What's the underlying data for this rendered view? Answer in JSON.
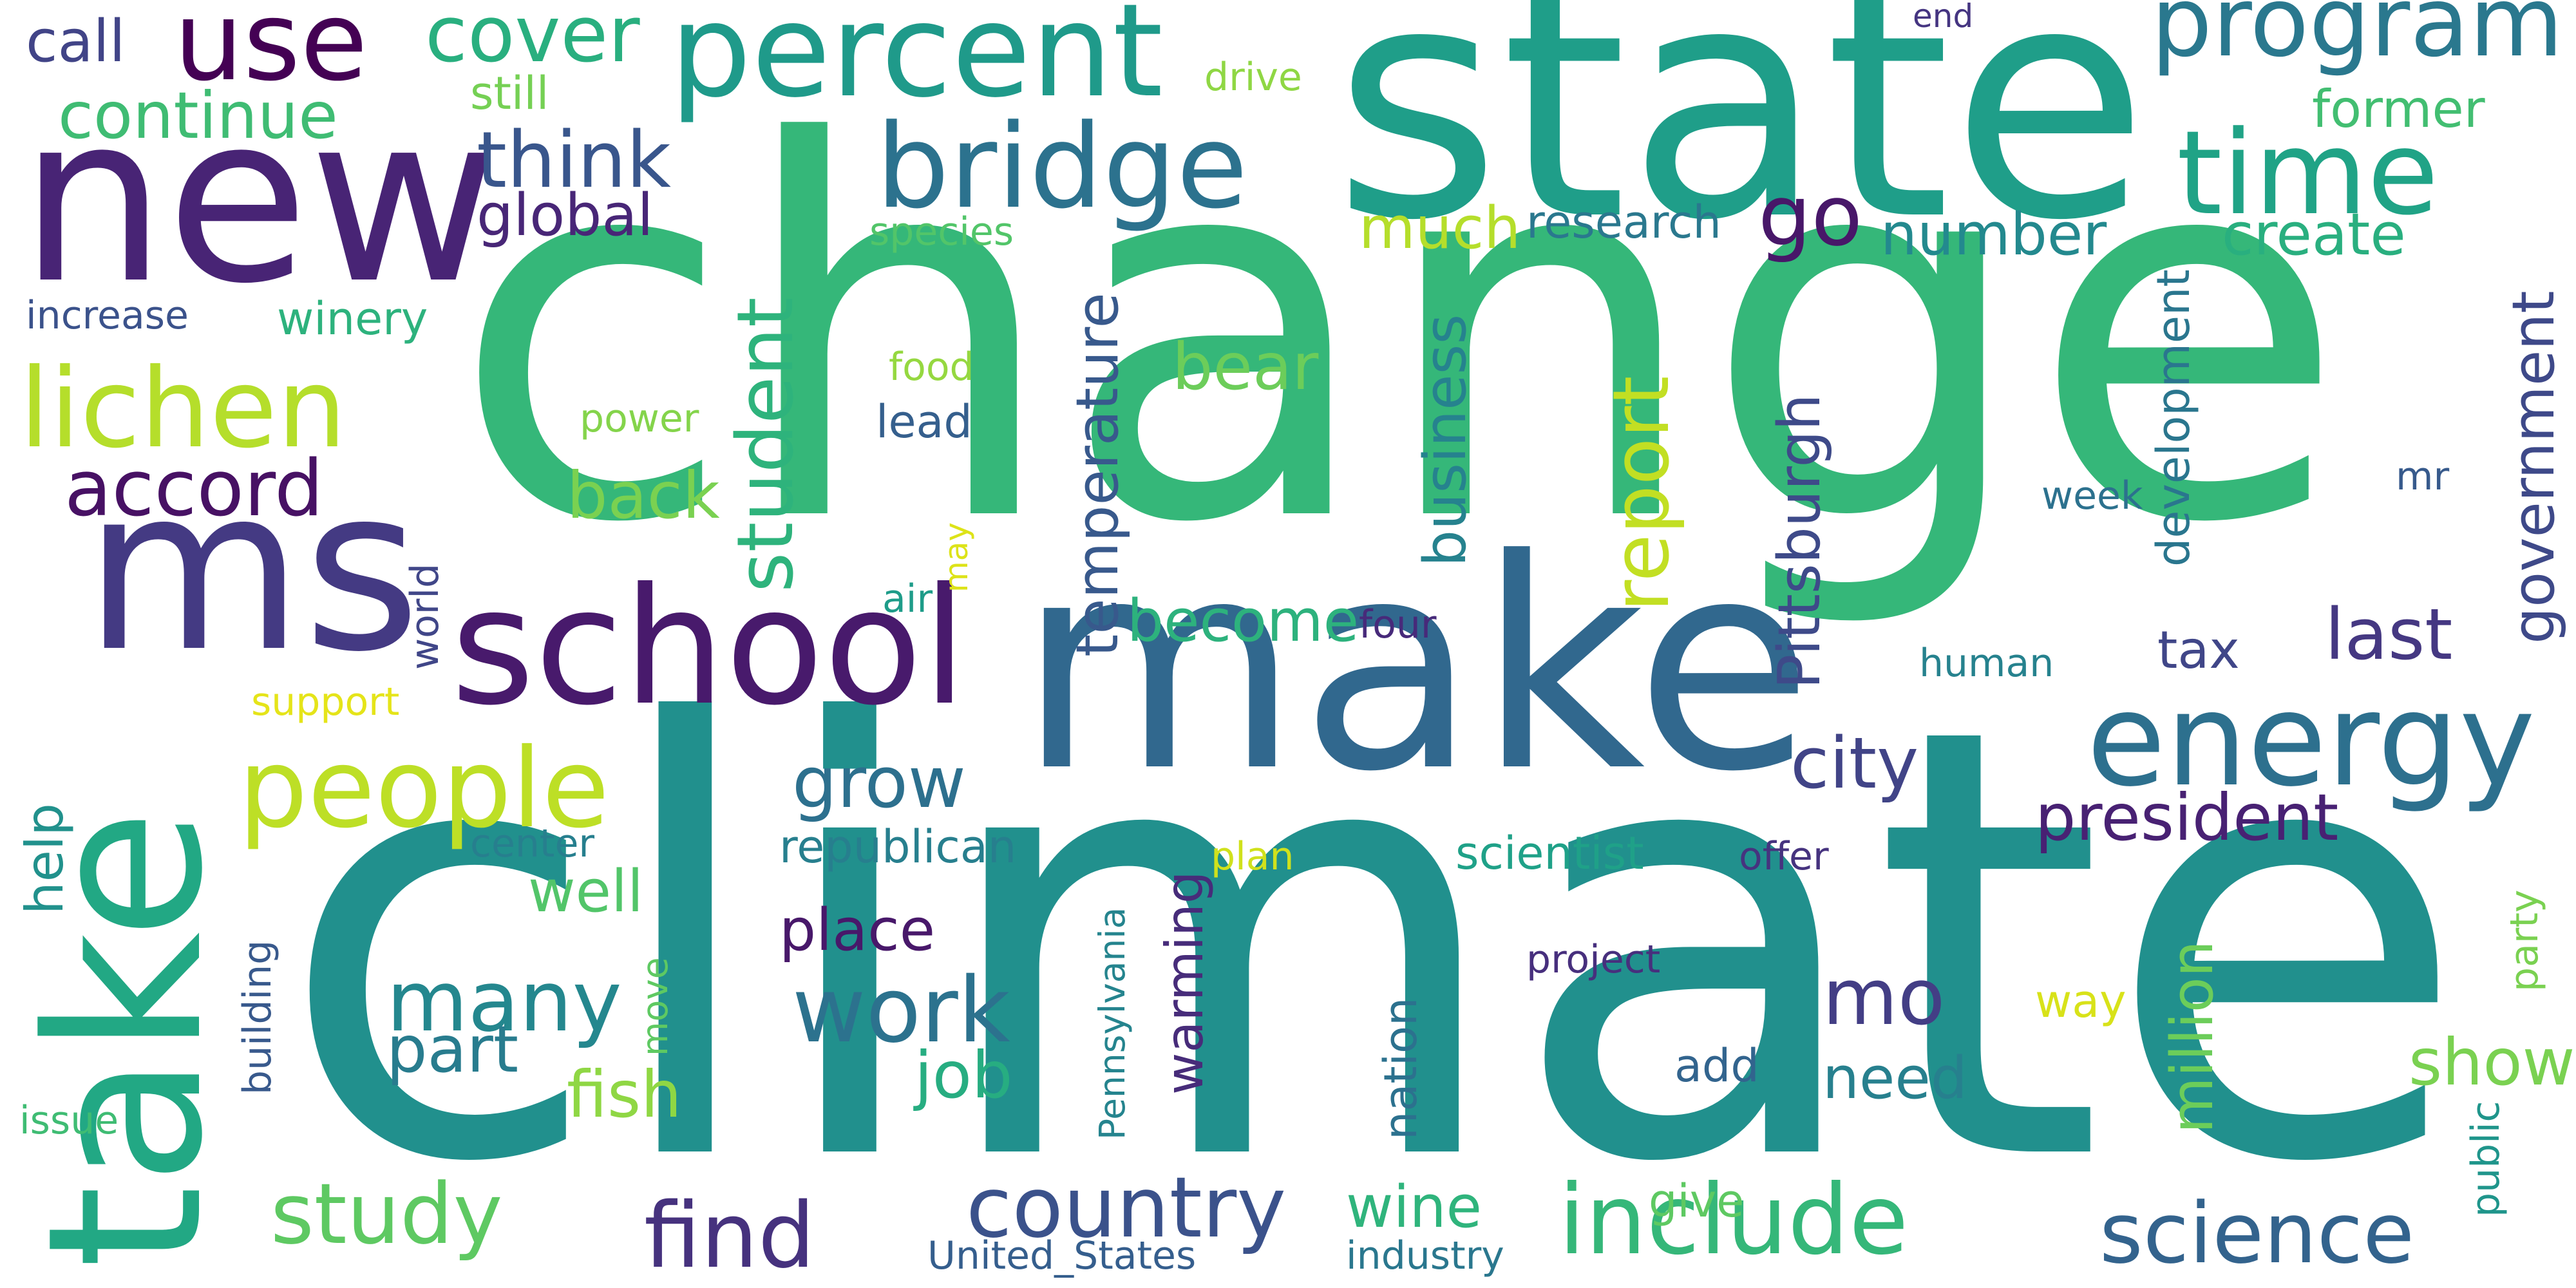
{
  "words": [
    {
      "text": "climate",
      "color": "#21908d"
    },
    {
      "text": "change",
      "color": "#35b779"
    },
    {
      "text": "state",
      "color": "#1f9e89"
    },
    {
      "text": "new",
      "color": "#482475"
    },
    {
      "text": "make",
      "color": "#31688e"
    },
    {
      "text": "ms",
      "color": "#443a83"
    },
    {
      "text": "take",
      "color": "#22a884"
    },
    {
      "text": "school",
      "color": "#481a6c"
    },
    {
      "text": "percent",
      "color": "#1f9a8a"
    },
    {
      "text": "bridge",
      "color": "#2c728e"
    },
    {
      "text": "program",
      "color": "#2a788e"
    },
    {
      "text": "energy",
      "color": "#2d708e"
    },
    {
      "text": "time",
      "color": "#20a386"
    },
    {
      "text": "people",
      "color": "#bddf26"
    },
    {
      "text": "use",
      "color": "#440154"
    },
    {
      "text": "lichen",
      "color": "#b5de2b"
    },
    {
      "text": "include",
      "color": "#35b779"
    },
    {
      "text": "science",
      "color": "#33638d"
    },
    {
      "text": "country",
      "color": "#3b528b"
    },
    {
      "text": "find",
      "color": "#46327e"
    },
    {
      "text": "work",
      "color": "#2c728e"
    },
    {
      "text": "many",
      "color": "#24878e"
    },
    {
      "text": "study",
      "color": "#5ec962"
    },
    {
      "text": "student",
      "color": "#2eb37c"
    },
    {
      "text": "accord",
      "color": "#471164"
    },
    {
      "text": "report",
      "color": "#c2df23"
    },
    {
      "text": "president",
      "color": "#482173"
    },
    {
      "text": "cover",
      "color": "#29af7f"
    },
    {
      "text": "think",
      "color": "#39568c"
    },
    {
      "text": "mo",
      "color": "#433e85"
    },
    {
      "text": "last",
      "color": "#453882"
    },
    {
      "text": "continue",
      "color": "#3fbc73"
    },
    {
      "text": "government",
      "color": "#3e4989"
    },
    {
      "text": "temperature",
      "color": "#38598c"
    },
    {
      "text": "Pittsburgh",
      "color": "#3e4a89"
    },
    {
      "text": "go",
      "color": "#481769"
    },
    {
      "text": "grow",
      "color": "#2d708e"
    },
    {
      "text": "city",
      "color": "#414487"
    },
    {
      "text": "business",
      "color": "#26828e"
    },
    {
      "text": "million",
      "color": "#6ccd5a"
    },
    {
      "text": "back",
      "color": "#7ad151"
    },
    {
      "text": "bear",
      "color": "#6ccd5a"
    },
    {
      "text": "become",
      "color": "#2db27d"
    },
    {
      "text": "place",
      "color": "#48186a"
    },
    {
      "text": "part",
      "color": "#287c8e"
    },
    {
      "text": "need",
      "color": "#27808e"
    },
    {
      "text": "job",
      "color": "#27ad81"
    },
    {
      "text": "show",
      "color": "#7ad151"
    },
    {
      "text": "fish",
      "color": "#8fd744"
    },
    {
      "text": "warming",
      "color": "#472c7a"
    },
    {
      "text": "development",
      "color": "#2a768e"
    },
    {
      "text": "wine",
      "color": "#2fb47c"
    },
    {
      "text": "well",
      "color": "#52c569"
    },
    {
      "text": "global",
      "color": "#482677"
    },
    {
      "text": "much",
      "color": "#b5de2b"
    },
    {
      "text": "number",
      "color": "#23898e"
    },
    {
      "text": "create",
      "color": "#29af7f"
    },
    {
      "text": "former",
      "color": "#42be71"
    },
    {
      "text": "research",
      "color": "#2a788e"
    },
    {
      "text": "call",
      "color": "#414487"
    },
    {
      "text": "still",
      "color": "#75d054"
    },
    {
      "text": "help",
      "color": "#21918c"
    },
    {
      "text": "winery",
      "color": "#2db27d"
    },
    {
      "text": "increase",
      "color": "#3b528b"
    },
    {
      "text": "republican",
      "color": "#277f8e"
    },
    {
      "text": "scientist",
      "color": "#1fa188"
    },
    {
      "text": "nation",
      "color": "#2c718e"
    },
    {
      "text": "world",
      "color": "#404688"
    },
    {
      "text": "tax",
      "color": "#404688"
    },
    {
      "text": "four",
      "color": "#472a7a"
    },
    {
      "text": "lead",
      "color": "#355f8d"
    },
    {
      "text": "food",
      "color": "#95d840"
    },
    {
      "text": "power",
      "color": "#84d44b"
    },
    {
      "text": "species",
      "color": "#52c569"
    },
    {
      "text": "drive",
      "color": "#8fd744"
    },
    {
      "text": "end",
      "color": "#453581"
    },
    {
      "text": "air",
      "color": "#1e9c89"
    },
    {
      "text": "may",
      "color": "#dde318"
    },
    {
      "text": "support",
      "color": "#e5e419"
    },
    {
      "text": "center",
      "color": "#277f8e"
    },
    {
      "text": "plan",
      "color": "#d0e11c"
    },
    {
      "text": "offer",
      "color": "#46337f"
    },
    {
      "text": "Pennsylvania",
      "color": "#25848e"
    },
    {
      "text": "building",
      "color": "#38598c"
    },
    {
      "text": "move",
      "color": "#5ec962"
    },
    {
      "text": "issue",
      "color": "#3fbc73"
    },
    {
      "text": "project",
      "color": "#472f7d"
    },
    {
      "text": "add",
      "color": "#32648e"
    },
    {
      "text": "way",
      "color": "#d8e219"
    },
    {
      "text": "give",
      "color": "#5ec962"
    },
    {
      "text": "public",
      "color": "#1f958b"
    },
    {
      "text": "party",
      "color": "#7ad151"
    },
    {
      "text": "industry",
      "color": "#2a778e"
    },
    {
      "text": "United_States",
      "color": "#355e8d"
    },
    {
      "text": "week",
      "color": "#2c718e"
    },
    {
      "text": "mr",
      "color": "#375a8c"
    },
    {
      "text": "human",
      "color": "#26828e"
    }
  ]
}
